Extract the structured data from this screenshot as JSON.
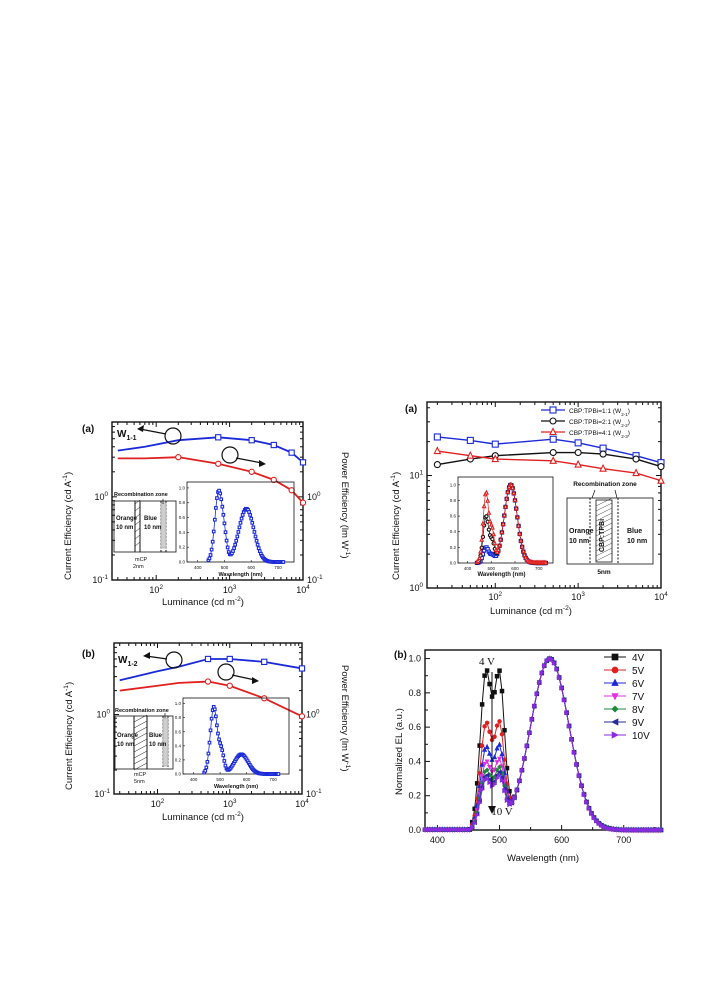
{
  "colors": {
    "blue": "#1a2ad8",
    "red": "#e02020",
    "black": "#111111",
    "green": "#1a8a3a",
    "magenta": "#e030e0",
    "violet": "#8a2be2"
  },
  "panelA": {
    "label": "(a)",
    "device": "W",
    "device_sub": "1-1",
    "ylabel_left": "Current Efficiency (cd A",
    "ylabel_left_sup": "-1",
    "ylabel_left_end": ")",
    "ylabel_right": "Power Efficiency (lm W",
    "ylabel_right_sup": "-1",
    "ylabel_right_end": ")",
    "xlabel": "Luminance (cd m",
    "xlabel_sup": "-2",
    "xlabel_end": ")",
    "xticks": [
      {
        "b": "10",
        "e": "2"
      },
      {
        "b": "10",
        "e": "3"
      },
      {
        "b": "10",
        "e": "4"
      }
    ],
    "yticks_left": [
      {
        "b": "10",
        "e": "0"
      },
      {
        "b": "10",
        "e": "-1"
      }
    ],
    "yticks_right": [
      {
        "b": "10",
        "e": "0"
      },
      {
        "b": "10",
        "e": "-1"
      }
    ],
    "inset": {
      "recomb": "Recombination zone",
      "orange": "Orange",
      "orange_nm": "10 nm",
      "blue": "Blue",
      "blue_nm": "10 nm",
      "mcp": "mCP",
      "mcp_nm": "2nm",
      "xlabel": "Wavelength (nm)",
      "xticks": [
        "400",
        "500",
        "600",
        "700"
      ],
      "yticks": [
        "0.0",
        "0.2",
        "0.4",
        "0.6",
        "0.8",
        "1.0"
      ]
    }
  },
  "panelB": {
    "label": "(b)",
    "device": "W",
    "device_sub": "1-2",
    "ylabel_left": "Current Efficiency (cd A",
    "ylabel_left_sup": "-1",
    "ylabel_left_end": ")",
    "ylabel_right": "Power Efficiency (lm W",
    "ylabel_right_sup": "-1",
    "ylabel_right_end": ")",
    "xlabel": "Luminance (cd m",
    "xlabel_sup": "-2",
    "xlabel_end": ")",
    "xticks": [
      {
        "b": "10",
        "e": "2"
      },
      {
        "b": "10",
        "e": "3"
      },
      {
        "b": "10",
        "e": "4"
      }
    ],
    "yticks_left": [
      {
        "b": "10",
        "e": "0"
      },
      {
        "b": "10",
        "e": "-1"
      }
    ],
    "yticks_right": [
      {
        "b": "10",
        "e": "0"
      },
      {
        "b": "10",
        "e": "-1"
      }
    ],
    "inset": {
      "recomb": "Recombination zone",
      "orange": "Orange",
      "orange_nm": "10 nm",
      "blue": "Blue",
      "blue_nm": "10 nm",
      "mcp": "mCP",
      "mcp_nm": "5nm",
      "xlabel": "Wavelength (nm)",
      "xticks": [
        "400",
        "500",
        "600",
        "700"
      ],
      "yticks": [
        "0.0",
        "0.2",
        "0.4",
        "0.6",
        "0.8",
        "1.0"
      ]
    }
  },
  "panelC": {
    "label": "(a)",
    "ylabel": "Current Efficiency (cd A",
    "ylabel_sup": "-1",
    "ylabel_end": ")",
    "xlabel": "Luminance (cd m",
    "xlabel_sup": "-2",
    "xlabel_end": ")",
    "xticks": [
      {
        "b": "10",
        "e": "2"
      },
      {
        "b": "10",
        "e": "3"
      },
      {
        "b": "10",
        "e": "4"
      }
    ],
    "yticks": [
      {
        "b": "10",
        "e": "1"
      },
      {
        "b": "10",
        "e": "0"
      }
    ],
    "legend": [
      {
        "text": "CBP:TPBi=1:1 (W",
        "sub": "2-1",
        "end": ")"
      },
      {
        "text": "CBP:TPBi=2:1 (W",
        "sub": "2-2",
        "end": ")"
      },
      {
        "text": "CBP:TPBi=4:1 (W",
        "sub": "2-3",
        "end": ")"
      }
    ],
    "inset": {
      "recomb": "Recombination zone",
      "orange": "Orange",
      "orange_nm": "10 nm",
      "blue": "Blue",
      "blue_nm": "10 nm",
      "cbp": "CBP:TPBi",
      "cbp_nm": "5nm",
      "xlabel": "Wavelength (nm)",
      "xticks": [
        "400",
        "500",
        "600",
        "700"
      ],
      "yticks": [
        "0.0",
        "0.2",
        "0.4",
        "0.6",
        "0.8",
        "1.0"
      ]
    }
  },
  "panelD": {
    "label": "(b)",
    "ylabel": "Normalized EL (a.u.)",
    "xlabel": "Wavelength (nm)",
    "xticks": [
      "400",
      "500",
      "600",
      "700"
    ],
    "yticks": [
      "0.0",
      "0.2",
      "0.4",
      "0.6",
      "0.8",
      "1.0"
    ],
    "ann_top": "4 V",
    "ann_bottom": "10 V",
    "legend": [
      "4V",
      "5V",
      "6V",
      "7V",
      "8V",
      "9V",
      "10V"
    ]
  },
  "chart_data": [
    {
      "type": "line",
      "title": "",
      "x_scale": "log",
      "y_scale": "log",
      "xlim": [
        25,
        10000
      ],
      "series": [
        {
          "axis": "left",
          "x": [
            30,
            70,
            200,
            700,
            2000,
            4000,
            7000,
            10000
          ],
          "y": [
            3.6,
            4.0,
            4.8,
            5.2,
            4.8,
            4.2,
            3.4,
            2.6
          ]
        },
        {
          "axis": "right",
          "x": [
            30,
            70,
            200,
            700,
            2000,
            4000,
            7000,
            10000
          ],
          "y": [
            2.9,
            2.9,
            3.0,
            2.5,
            2.0,
            1.6,
            1.2,
            0.85
          ]
        }
      ]
    },
    {
      "type": "line",
      "title": "",
      "x_scale": "log",
      "y_scale": "log",
      "xlim": [
        25,
        10000
      ],
      "series": [
        {
          "axis": "left",
          "x": [
            30,
            100,
            200,
            500,
            1000,
            3000,
            10000
          ],
          "y": [
            2.7,
            3.5,
            4.0,
            5.0,
            5.0,
            4.6,
            3.8
          ]
        },
        {
          "axis": "right",
          "x": [
            30,
            100,
            200,
            500,
            1000,
            3000,
            10000
          ],
          "y": [
            2.0,
            2.3,
            2.5,
            2.6,
            2.3,
            1.6,
            0.95
          ]
        }
      ]
    },
    {
      "type": "line",
      "title": "",
      "x_scale": "log",
      "y_scale": "log",
      "xlim": [
        15,
        10000
      ],
      "ylim": [
        1,
        40
      ],
      "series": [
        {
          "name": "CBP:TPBi=1:1 (W2-1)",
          "x": [
            20,
            50,
            100,
            500,
            1000,
            2000,
            5000,
            10000
          ],
          "y": [
            22,
            20.5,
            19,
            21,
            19.5,
            17.5,
            15,
            13
          ]
        },
        {
          "name": "CBP:TPBi=2:1 (W2-2)",
          "x": [
            20,
            50,
            100,
            500,
            1000,
            2000,
            5000,
            10000
          ],
          "y": [
            12.5,
            14,
            15,
            16,
            16,
            15.5,
            14,
            12
          ]
        },
        {
          "name": "CBP:TPBi=4:1 (W2-3)",
          "x": [
            20,
            50,
            100,
            500,
            1000,
            2000,
            5000,
            10000
          ],
          "y": [
            16.5,
            15,
            14,
            13.5,
            12.5,
            11.5,
            10.5,
            9
          ]
        }
      ]
    },
    {
      "type": "line",
      "title": "",
      "xlim": [
        380,
        760
      ],
      "ylim": [
        0,
        1.05
      ],
      "peaks": [
        {
          "name": "4V",
          "blue_peak": 0.91
        },
        {
          "name": "5V",
          "blue_peak": 0.61
        },
        {
          "name": "6V",
          "blue_peak": 0.47
        },
        {
          "name": "7V",
          "blue_peak": 0.39
        },
        {
          "name": "8V",
          "blue_peak": 0.34
        },
        {
          "name": "9V",
          "blue_peak": 0.31
        },
        {
          "name": "10V",
          "blue_peak": 0.29
        }
      ],
      "orange_peak": {
        "x": 580,
        "y": 1.0
      }
    }
  ]
}
